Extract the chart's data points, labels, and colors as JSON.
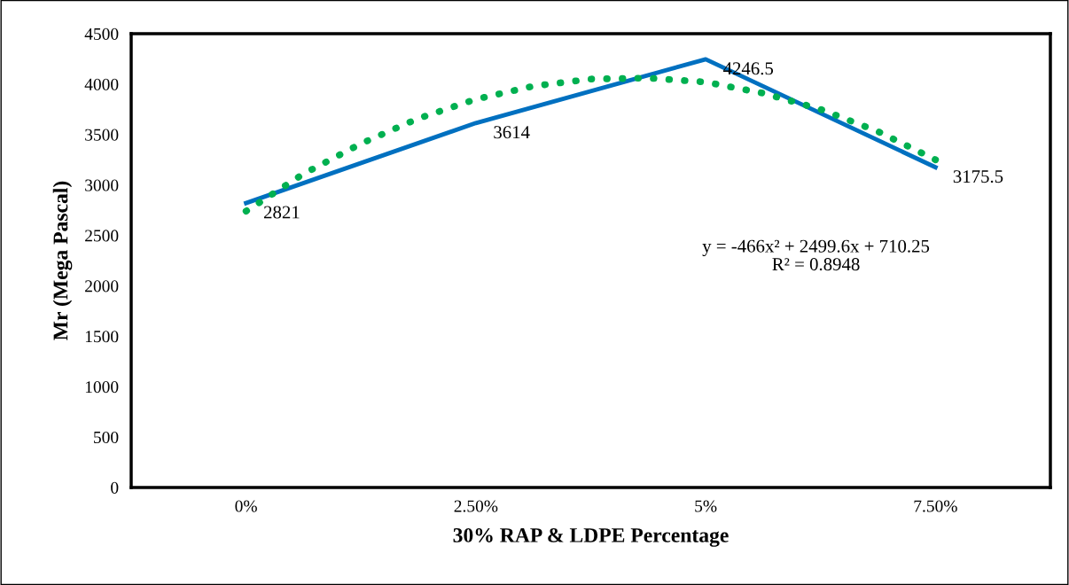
{
  "chart_data": {
    "type": "line",
    "xlabel": "30% RAP & LDPE Percentage",
    "ylabel": "Mr (Mega Pascal)",
    "x": [
      0,
      2.5,
      5,
      7.5
    ],
    "xlim": [
      -1.25,
      8.75
    ],
    "xticks": [
      {
        "value": 0,
        "label": "0%"
      },
      {
        "value": 2.5,
        "label": "2.50%"
      },
      {
        "value": 5,
        "label": "5%"
      },
      {
        "value": 7.5,
        "label": "7.50%"
      }
    ],
    "series": [
      {
        "color": "#0070c0",
        "values": [
          2821,
          3614,
          4246.5,
          3175.5
        ],
        "data_labels": true,
        "line_style": "solid"
      },
      {
        "type": "line",
        "color": "#00b050",
        "line_style": "dotted",
        "x": [
          0,
          0.625,
          1.25,
          1.875,
          2.5,
          3.125,
          3.75,
          4.375,
          5,
          5.625,
          6.25,
          6.875,
          7.5
        ],
        "values": [
          2740,
          3110,
          3410,
          3660,
          3850,
          3980,
          4050,
          4060,
          4020,
          3910,
          3750,
          3530,
          3250
        ]
      }
    ],
    "ylim": [
      0,
      4500
    ],
    "yticks": [
      0,
      500,
      1000,
      1500,
      2000,
      2500,
      3000,
      3500,
      4000,
      4500
    ],
    "grid": false,
    "legend": false,
    "marker": "none",
    "annotations": [
      "y = -466x² + 2499.6x + 710.25\nR² = 0.8948"
    ]
  }
}
